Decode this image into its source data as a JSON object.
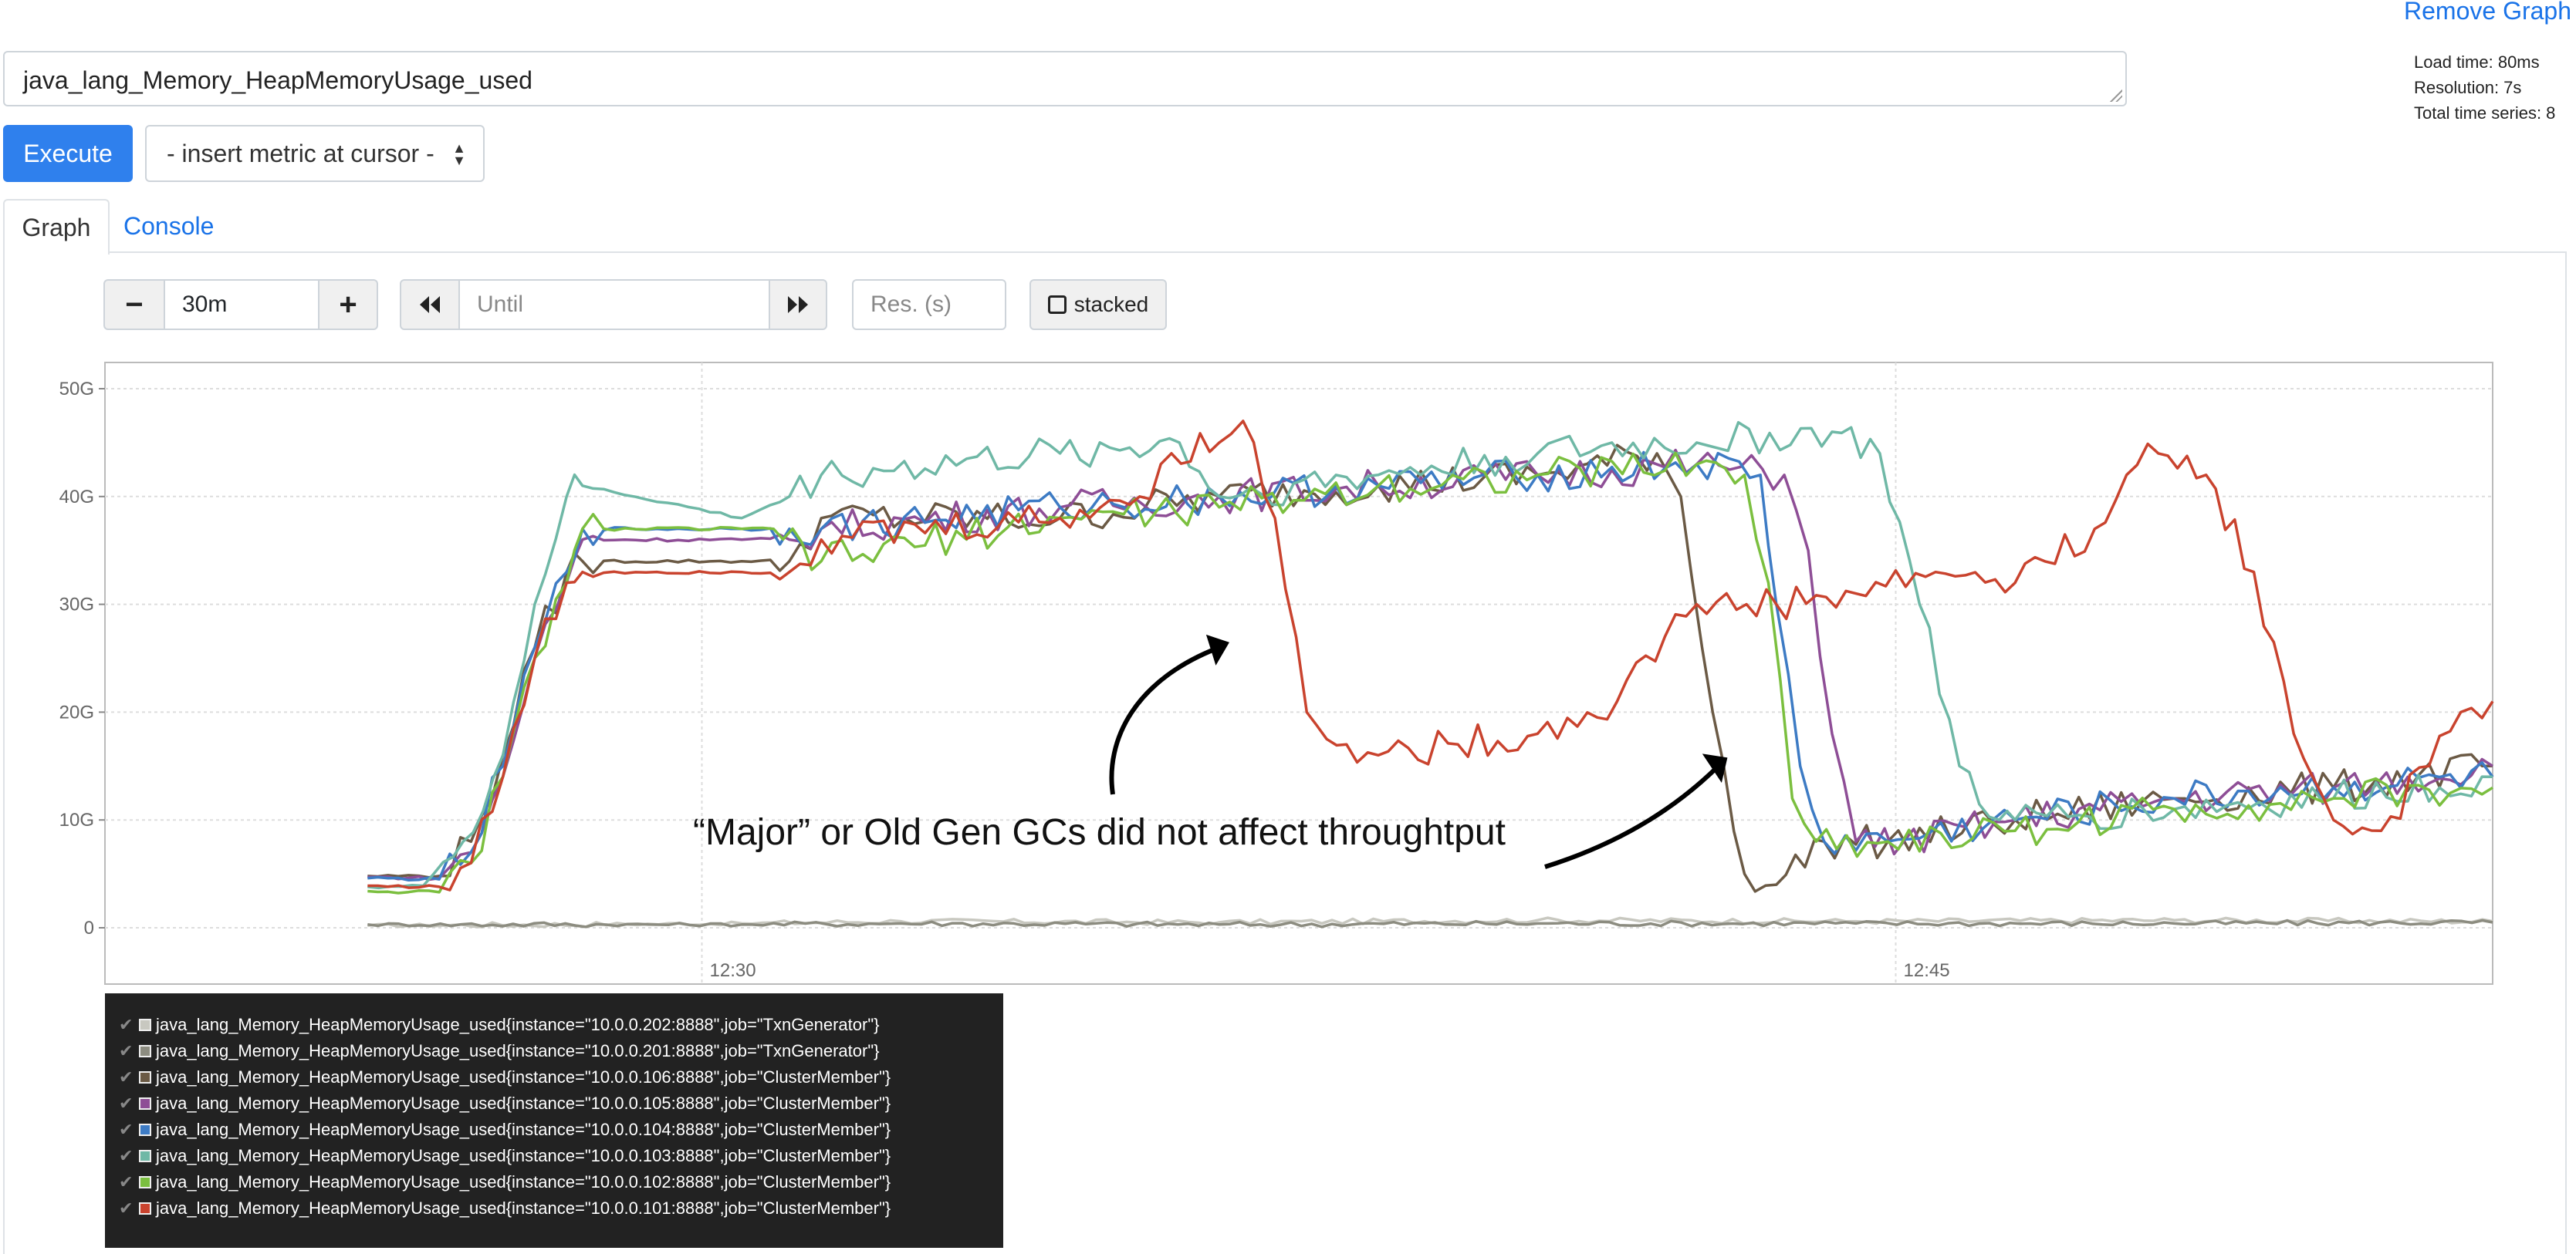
{
  "header": {
    "remove_graph": "Remove Graph"
  },
  "stats": {
    "load_time": "Load time: 80ms",
    "resolution": "Resolution: 7s",
    "total_series": "Total time series: 8"
  },
  "query": {
    "expression": "java_lang_Memory_HeapMemoryUsage_used"
  },
  "toolbar": {
    "execute_label": "Execute",
    "insert_metric_label": "- insert metric at cursor -"
  },
  "tabs": [
    {
      "label": "Graph",
      "active": true
    },
    {
      "label": "Console",
      "active": false
    }
  ],
  "graph_controls": {
    "minus_label": "−",
    "range_value": "30m",
    "plus_label": "+",
    "back_icon": "double-left-chevron",
    "until_placeholder": "Until",
    "forward_icon": "double-right-chevron",
    "resolution_placeholder": "Res. (s)",
    "stacked_label": "stacked"
  },
  "annotation": {
    "text": "“Major” or Old Gen GCs did not affect throughtput"
  },
  "colors": {
    "accent": "#2f80ed",
    "link": "#1a73e8",
    "legend_bg": "#222222"
  },
  "chart_data": {
    "type": "line",
    "y_ticks": [
      "50G",
      "40G",
      "30G",
      "20G",
      "10G",
      "0"
    ],
    "x_ticks": [
      "12:30",
      "12:45"
    ],
    "ylim": [
      0,
      50
    ],
    "x_unit": "minutes since 12:22:30",
    "xlim": [
      0,
      30
    ],
    "grid": true,
    "series": [
      {
        "name": "java_lang_Memory_HeapMemoryUsage_used{instance=\"10.0.0.202:8888\",job=\"TxnGenerator\"}",
        "color": "#c8c8c0",
        "points": [
          [
            3.3,
            0.2
          ],
          [
            8,
            0.4
          ],
          [
            10,
            0.6
          ],
          [
            14,
            0.5
          ],
          [
            18,
            0.7
          ],
          [
            22,
            0.6
          ],
          [
            26,
            0.7
          ],
          [
            30,
            0.6
          ]
        ]
      },
      {
        "name": "java_lang_Memory_HeapMemoryUsage_used{instance=\"10.0.0.201:8888\",job=\"TxnGenerator\"}",
        "color": "#8c8c80",
        "points": [
          [
            3.3,
            0.3
          ],
          [
            8,
            0.3
          ],
          [
            10,
            0.4
          ],
          [
            14,
            0.3
          ],
          [
            18,
            0.4
          ],
          [
            22,
            0.4
          ],
          [
            26,
            0.4
          ],
          [
            30,
            0.5
          ]
        ]
      },
      {
        "name": "java_lang_Memory_HeapMemoryUsage_used{instance=\"10.0.0.106:8888\",job=\"ClusterMember\"}",
        "color": "#6b5a45",
        "points": [
          [
            3.3,
            4.8
          ],
          [
            4.2,
            4.8
          ],
          [
            4.6,
            8
          ],
          [
            5,
            16
          ],
          [
            5.4,
            26
          ],
          [
            5.8,
            33
          ],
          [
            6,
            34
          ],
          [
            8,
            34
          ],
          [
            8.6,
            34
          ],
          [
            9,
            38
          ],
          [
            12,
            38
          ],
          [
            14,
            40
          ],
          [
            16,
            41
          ],
          [
            18,
            42
          ],
          [
            19.5,
            44
          ],
          [
            19.8,
            40
          ],
          [
            20.2,
            20
          ],
          [
            20.6,
            5
          ],
          [
            21,
            4
          ],
          [
            21.6,
            8
          ],
          [
            22.4,
            8
          ],
          [
            24,
            10
          ],
          [
            26,
            12
          ],
          [
            28,
            13
          ],
          [
            30,
            15
          ]
        ]
      },
      {
        "name": "java_lang_Memory_HeapMemoryUsage_used{instance=\"10.0.0.105:8888\",job=\"ClusterMember\"}",
        "color": "#8e4e96",
        "points": [
          [
            3.3,
            4.7
          ],
          [
            4.2,
            4.6
          ],
          [
            4.6,
            7
          ],
          [
            5,
            14
          ],
          [
            5.4,
            25
          ],
          [
            5.8,
            32
          ],
          [
            6,
            36
          ],
          [
            8,
            36
          ],
          [
            8.6,
            36
          ],
          [
            9,
            37
          ],
          [
            12,
            39
          ],
          [
            14,
            40
          ],
          [
            16,
            41
          ],
          [
            18,
            42
          ],
          [
            20,
            43
          ],
          [
            21.1,
            42
          ],
          [
            21.4,
            35
          ],
          [
            21.7,
            18
          ],
          [
            22,
            8
          ],
          [
            22.6,
            8
          ],
          [
            24,
            10
          ],
          [
            26,
            12
          ],
          [
            28,
            13
          ],
          [
            30,
            15
          ]
        ]
      },
      {
        "name": "java_lang_Memory_HeapMemoryUsage_used{instance=\"10.0.0.104:8888\",job=\"ClusterMember\"}",
        "color": "#3d7bc4",
        "points": [
          [
            3.3,
            4.6
          ],
          [
            4.2,
            4.5
          ],
          [
            4.6,
            7
          ],
          [
            5,
            15
          ],
          [
            5.4,
            26
          ],
          [
            5.8,
            33
          ],
          [
            6,
            37
          ],
          [
            8,
            37
          ],
          [
            8.6,
            37
          ],
          [
            9,
            37
          ],
          [
            12,
            39
          ],
          [
            14,
            40
          ],
          [
            16,
            41
          ],
          [
            18,
            42
          ],
          [
            20,
            43
          ],
          [
            20.8,
            42
          ],
          [
            21,
            30
          ],
          [
            21.3,
            15
          ],
          [
            21.6,
            8
          ],
          [
            22.4,
            8
          ],
          [
            24,
            10
          ],
          [
            26,
            12
          ],
          [
            28,
            13
          ],
          [
            30,
            14
          ]
        ]
      },
      {
        "name": "java_lang_Memory_HeapMemoryUsage_used{instance=\"10.0.0.103:8888\",job=\"ClusterMember\"}",
        "color": "#6fb8a6",
        "points": [
          [
            3.3,
            3.8
          ],
          [
            4,
            3.9
          ],
          [
            4.5,
            8
          ],
          [
            5,
            16
          ],
          [
            5.4,
            30
          ],
          [
            5.8,
            40
          ],
          [
            6,
            41
          ],
          [
            8,
            38
          ],
          [
            8.6,
            40
          ],
          [
            9,
            42
          ],
          [
            12,
            44
          ],
          [
            13.5,
            45
          ],
          [
            14,
            40
          ],
          [
            16,
            42
          ],
          [
            18,
            44
          ],
          [
            20,
            45
          ],
          [
            21.7,
            46
          ],
          [
            22.3,
            44
          ],
          [
            22.8,
            30
          ],
          [
            23.3,
            15
          ],
          [
            23.8,
            10
          ],
          [
            24,
            10
          ],
          [
            26,
            11
          ],
          [
            28,
            12
          ],
          [
            30,
            14
          ]
        ]
      },
      {
        "name": "java_lang_Memory_HeapMemoryUsage_used{instance=\"10.0.0.102:8888\",job=\"ClusterMember\"}",
        "color": "#7bbf3f",
        "points": [
          [
            3.3,
            3.4
          ],
          [
            4.2,
            3.3
          ],
          [
            4.6,
            6
          ],
          [
            5,
            14
          ],
          [
            5.4,
            25
          ],
          [
            5.8,
            32
          ],
          [
            6,
            37
          ],
          [
            8,
            37
          ],
          [
            8.4,
            37
          ],
          [
            9,
            34
          ],
          [
            12,
            38
          ],
          [
            14,
            39
          ],
          [
            16,
            41
          ],
          [
            18,
            42
          ],
          [
            20,
            43
          ],
          [
            20.6,
            42
          ],
          [
            20.9,
            32
          ],
          [
            21.2,
            12
          ],
          [
            21.5,
            8
          ],
          [
            22.4,
            8
          ],
          [
            24,
            9
          ],
          [
            26,
            11
          ],
          [
            28,
            12
          ],
          [
            30,
            13
          ]
        ]
      },
      {
        "name": "java_lang_Memory_HeapMemoryUsage_used{instance=\"10.0.0.101:8888\",job=\"ClusterMember\"}",
        "color": "#c9432e",
        "points": [
          [
            3.3,
            3.9
          ],
          [
            4.2,
            3.8
          ],
          [
            4.6,
            6
          ],
          [
            5,
            14
          ],
          [
            5.4,
            25
          ],
          [
            5.8,
            32
          ],
          [
            6,
            33
          ],
          [
            8,
            33
          ],
          [
            8.6,
            33
          ],
          [
            9,
            36
          ],
          [
            12,
            38
          ],
          [
            13,
            40
          ],
          [
            13.4,
            44
          ],
          [
            14,
            45
          ],
          [
            14.3,
            47
          ],
          [
            14.7,
            38
          ],
          [
            15.1,
            20
          ],
          [
            15.6,
            17
          ],
          [
            16,
            16
          ],
          [
            17,
            17
          ],
          [
            18,
            18
          ],
          [
            19,
            21
          ],
          [
            19.6,
            27
          ],
          [
            20,
            30
          ],
          [
            21,
            30
          ],
          [
            22,
            31
          ],
          [
            23,
            33
          ],
          [
            24,
            32
          ],
          [
            25,
            37
          ],
          [
            25.4,
            42
          ],
          [
            25.8,
            44
          ],
          [
            26.4,
            42
          ],
          [
            27,
            33
          ],
          [
            27.5,
            18
          ],
          [
            28,
            10
          ],
          [
            28.6,
            9
          ],
          [
            29.2,
            15
          ],
          [
            29.6,
            20
          ],
          [
            30,
            21
          ]
        ]
      }
    ]
  }
}
